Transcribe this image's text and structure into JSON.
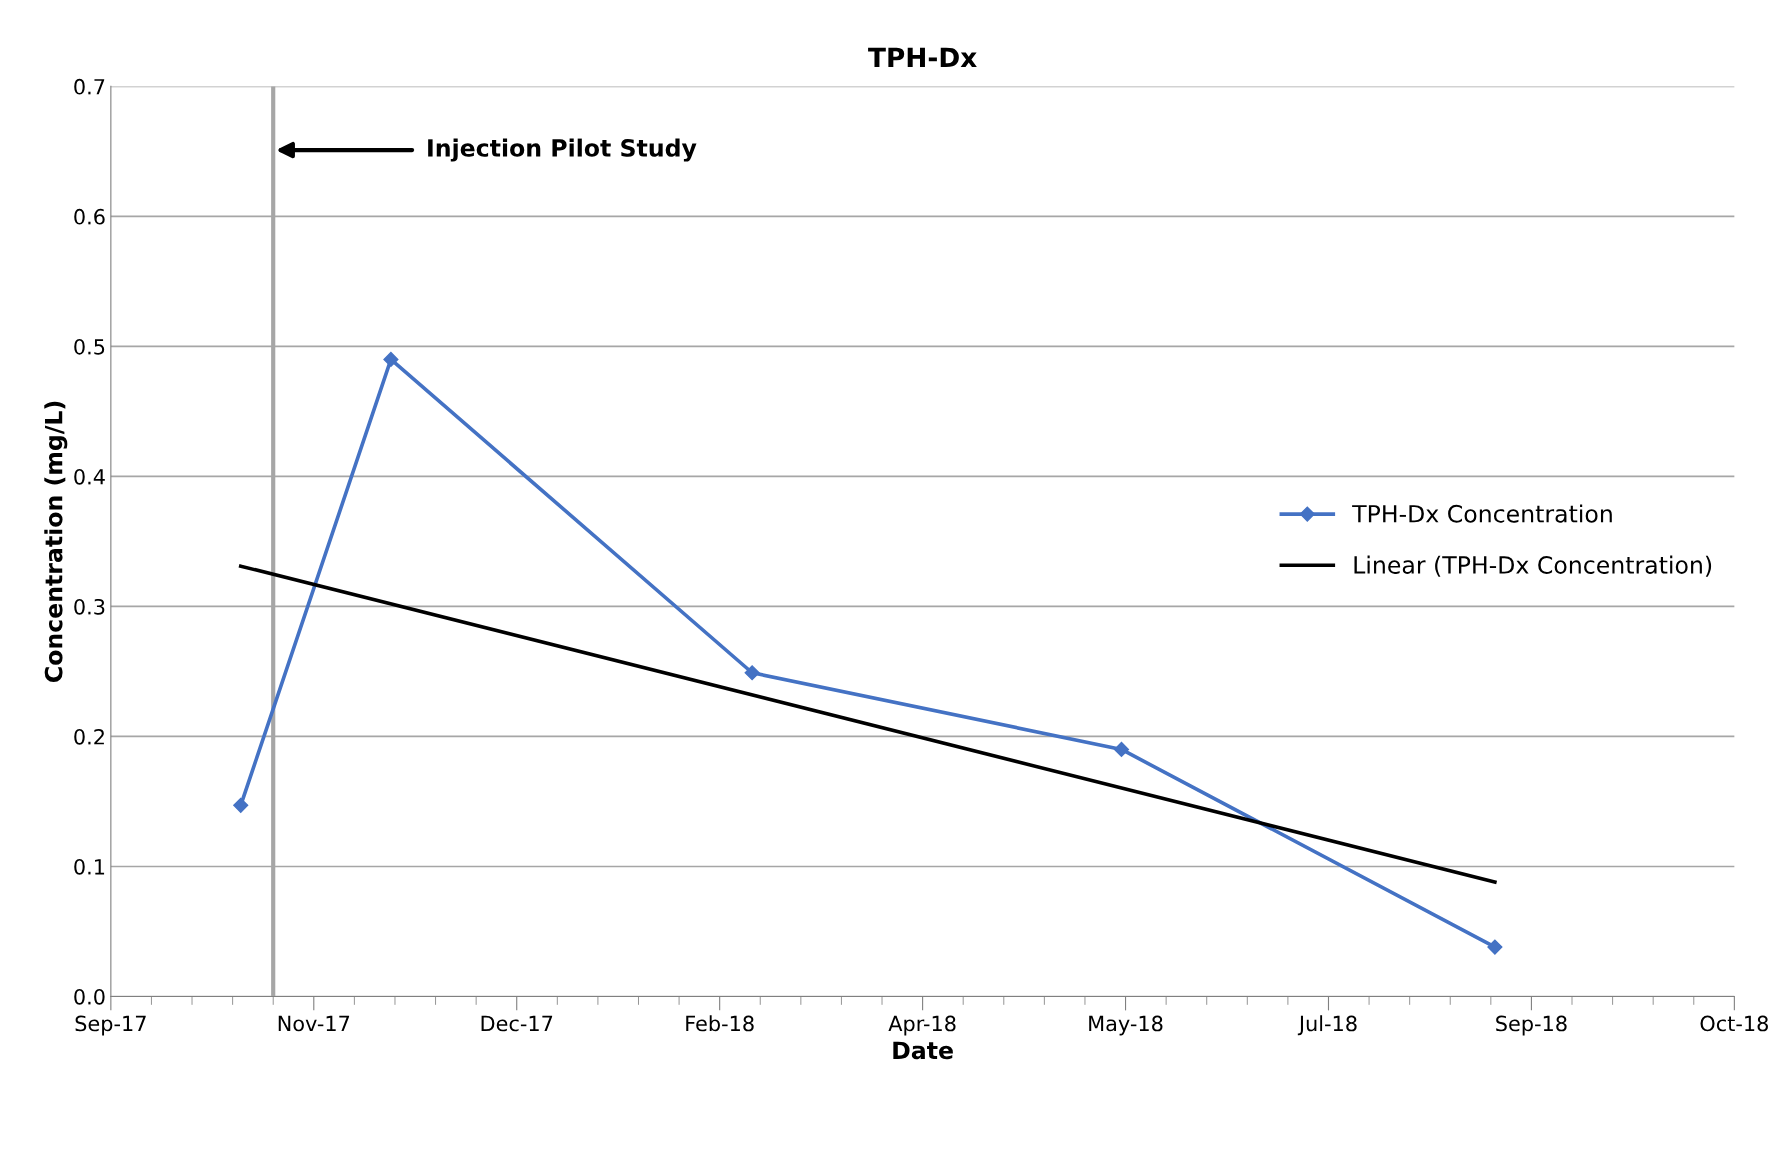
{
  "chart_data": {
    "type": "line",
    "title": "TPH-Dx",
    "xlabel": "Date",
    "ylabel": "Concentration (mg/L)",
    "x": [
      "2017-10-22",
      "2017-11-28",
      "2018-02-25",
      "2018-05-27",
      "2018-08-27"
    ],
    "series": [
      {
        "name": "TPH-Dx Concentration",
        "color": "#4472c4",
        "values": [
          0.147,
          0.49,
          0.249,
          0.19,
          0.038
        ],
        "marker": "diamond"
      },
      {
        "name": "Linear (TPH-Dx Concentration)",
        "color": "#000000",
        "type": "line",
        "x": [
          "2017-10-22",
          "2018-08-27"
        ],
        "values": [
          0.331,
          0.088
        ],
        "marker": "none"
      }
    ],
    "xlim": [
      "2017-09-20",
      "2018-10-25"
    ],
    "xticks": [
      {
        "value": "2017-09-20",
        "label": "Sep-17"
      },
      {
        "value": "2017-11-09",
        "label": "Nov-17"
      },
      {
        "value": "2017-12-29",
        "label": "Dec-17"
      },
      {
        "value": "2018-02-17",
        "label": "Feb-18"
      },
      {
        "value": "2018-04-08",
        "label": "Apr-18"
      },
      {
        "value": "2018-05-28",
        "label": "May-18"
      },
      {
        "value": "2018-07-17",
        "label": "Jul-18"
      },
      {
        "value": "2018-09-05",
        "label": "Sep-18"
      },
      {
        "value": "2018-10-25",
        "label": "Oct-18"
      }
    ],
    "ylim": [
      0,
      0.7
    ],
    "yticks": [
      {
        "value": 0,
        "label": "0.0"
      },
      0.1,
      0.2,
      0.3,
      0.4,
      0.5,
      0.6,
      0.7
    ],
    "ref_lines": [
      {
        "axis": "x",
        "value": "2017-10-30",
        "color": "#a6a6a6",
        "label": "Injection Pilot Study"
      }
    ],
    "grid": "y",
    "legend": "right",
    "line_style": "solid"
  }
}
